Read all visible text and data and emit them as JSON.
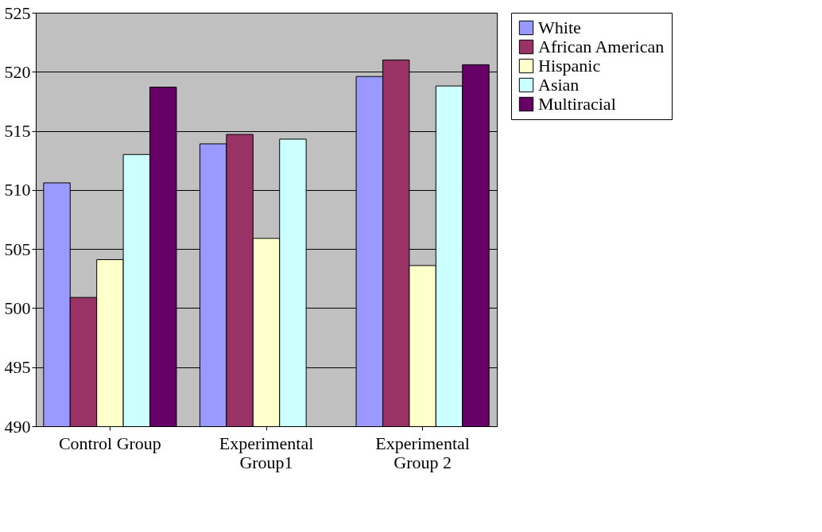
{
  "chart_data": {
    "type": "bar",
    "categories": [
      "Control Group",
      "Experimental Group1",
      "Experimental Group 2"
    ],
    "series": [
      {
        "name": "White",
        "color": "#9999ff",
        "values": [
          510.6,
          513.9,
          519.6
        ]
      },
      {
        "name": "African American",
        "color": "#993366",
        "values": [
          500.9,
          514.7,
          521.0
        ]
      },
      {
        "name": "Hispanic",
        "color": "#ffffcc",
        "values": [
          504.1,
          505.9,
          503.6
        ]
      },
      {
        "name": "Asian",
        "color": "#ccffff",
        "values": [
          513.0,
          514.3,
          518.8
        ]
      },
      {
        "name": "Multiracial",
        "color": "#660066",
        "values": [
          518.7,
          null,
          520.6
        ]
      }
    ],
    "ylim": [
      490,
      525
    ],
    "yticks": [
      490,
      495,
      500,
      505,
      510,
      515,
      520,
      525
    ],
    "grid": "y",
    "legend": "right"
  }
}
